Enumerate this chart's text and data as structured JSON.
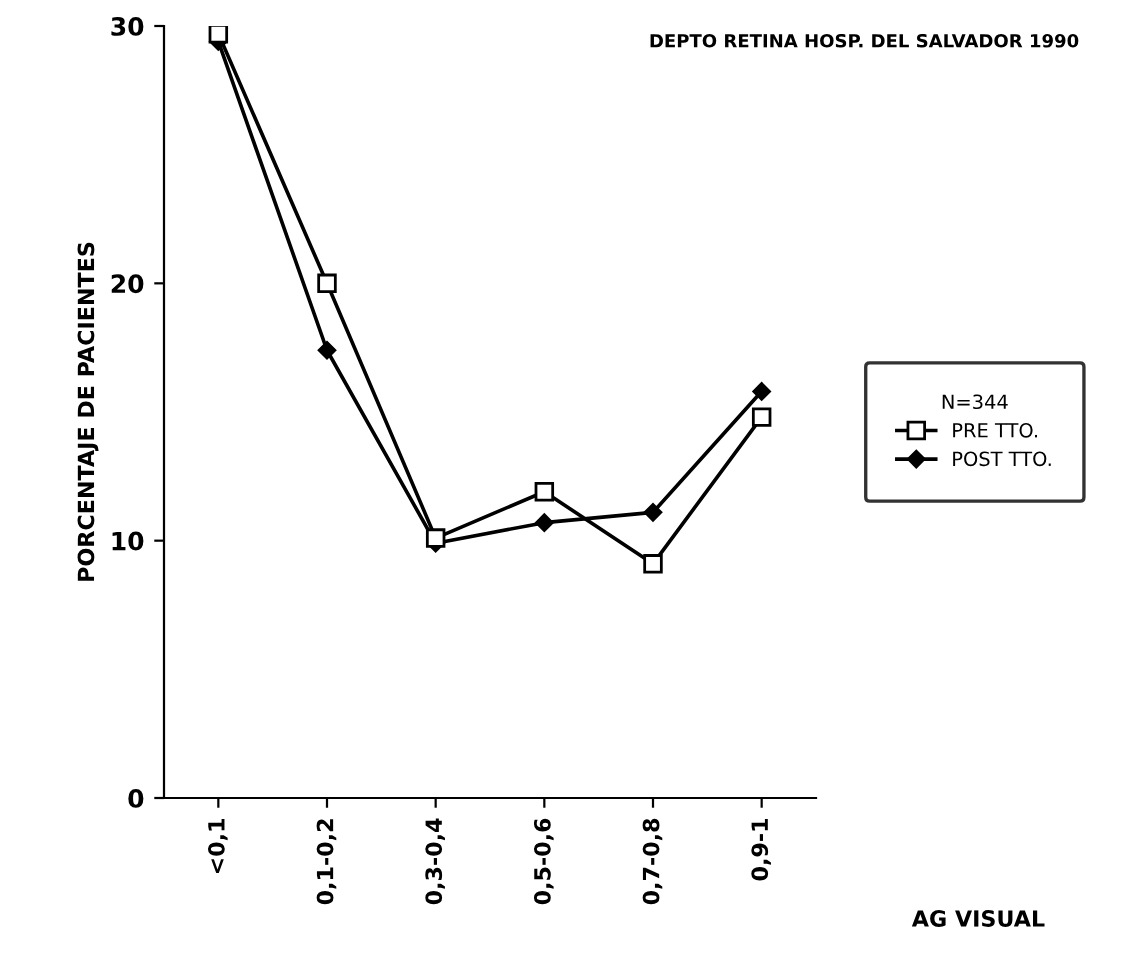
{
  "chart_data": {
    "type": "line",
    "categories": [
      "<0,1",
      "0,1-0,2",
      "0,3-0,4",
      "0,5-0,6",
      "0,7-0,8",
      "0,9-1"
    ],
    "series": [
      {
        "name": "PRE TTO.",
        "color": "#000000",
        "marker": "square",
        "values": [
          29.7,
          20.0,
          10.1,
          11.9,
          9.1,
          14.8
        ]
      },
      {
        "name": "POST TTO.",
        "color": "#000000",
        "marker": "diamond",
        "values": [
          29.4,
          17.4,
          9.9,
          10.7,
          11.1,
          15.8
        ]
      }
    ],
    "ylabel": "PORCENTAJE DE PACIENTES",
    "xlabel": "AG VISUAL",
    "legend_title": "N=344",
    "annotations": [
      "DEPTO RETINA HOSP. DEL SALVADOR 1990"
    ],
    "ylim": [
      0,
      30
    ],
    "yticks": [
      0,
      10,
      20,
      30
    ],
    "grid": false,
    "legend": "right",
    "line_style": "solid"
  }
}
